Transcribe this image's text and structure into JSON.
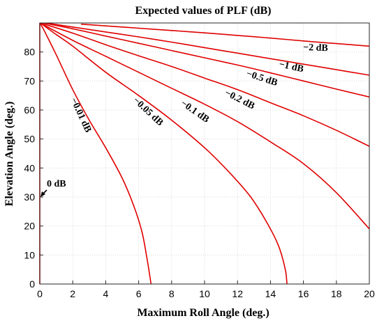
{
  "chart_data": {
    "type": "line",
    "title": "Expected values of PLF (dB)",
    "xlabel": "Maximum Roll Angle (deg.)",
    "ylabel": "Elevation Angle (deg.)",
    "xlim": [
      0,
      20
    ],
    "ylim": [
      0,
      90
    ],
    "xticks": [
      0,
      2,
      4,
      6,
      8,
      10,
      12,
      14,
      16,
      18,
      20
    ],
    "yticks": [
      0,
      10,
      20,
      30,
      40,
      50,
      60,
      70,
      80
    ],
    "grid": true,
    "colors": {
      "curve": "#e00000"
    },
    "series": [
      {
        "label": "0 dB",
        "x": [
          0,
          0
        ],
        "y": [
          0,
          90
        ]
      },
      {
        "label": "−0.01 dB",
        "x": [
          0.02,
          0.3,
          1.0,
          2.0,
          3.0,
          4.0,
          5.0,
          5.7,
          6.2,
          6.5,
          6.7,
          6.75
        ],
        "y": [
          89.9,
          87,
          79,
          67,
          56.5,
          47,
          36.5,
          27,
          18,
          9,
          2,
          0
        ]
      },
      {
        "label": "−0.05 dB",
        "x": [
          0.05,
          1,
          2,
          4,
          6,
          8,
          10,
          11.5,
          12.8,
          13.8,
          14.5,
          14.9,
          15.0
        ],
        "y": [
          89.9,
          86,
          82,
          73,
          65,
          56.5,
          47,
          38.5,
          30,
          21,
          13,
          5,
          0
        ]
      },
      {
        "label": "−0.1 dB",
        "x": [
          0.05,
          2,
          4,
          6,
          8,
          10,
          12,
          14,
          16,
          18,
          20
        ],
        "y": [
          89.9,
          84,
          78.5,
          73,
          67.5,
          62,
          56,
          49,
          41.5,
          31.5,
          19
        ]
      },
      {
        "label": "−0.2 dB",
        "x": [
          0.1,
          2,
          4,
          6,
          8,
          10,
          12,
          14,
          16,
          18,
          20
        ],
        "y": [
          89.9,
          86.5,
          82.5,
          78.7,
          75,
          71,
          67,
          62.5,
          58,
          53,
          47.5
        ]
      },
      {
        "label": "−0.5 dB",
        "x": [
          0.3,
          2,
          4,
          6,
          8,
          10,
          12,
          14,
          16,
          18,
          20
        ],
        "y": [
          89.9,
          88,
          85.5,
          83,
          80.5,
          78,
          75.5,
          72.8,
          70,
          67.2,
          64.5
        ]
      },
      {
        "label": "−1 dB",
        "x": [
          0.5,
          2,
          4,
          6,
          8,
          10,
          12,
          14,
          16,
          18,
          20
        ],
        "y": [
          89.9,
          88.6,
          86.9,
          85.2,
          83.4,
          81.5,
          79.6,
          77.7,
          75.8,
          73.9,
          72
        ]
      },
      {
        "label": "−2 dB",
        "x": [
          2.5,
          4,
          6,
          8,
          10,
          12,
          14,
          16,
          18,
          20
        ],
        "y": [
          89.6,
          89,
          88.2,
          87.4,
          86.6,
          85.7,
          84.8,
          83.8,
          82.9,
          82
        ]
      }
    ],
    "annotations": [
      {
        "text": "0 dB",
        "arrow": true
      },
      {
        "text": "−0.01 dB"
      },
      {
        "text": "−0.05 dB"
      },
      {
        "text": "−0.1 dB"
      },
      {
        "text": "−0.2 dB"
      },
      {
        "text": "−0.5 dB"
      },
      {
        "text": "−1 dB"
      },
      {
        "text": "−2 dB"
      }
    ]
  }
}
